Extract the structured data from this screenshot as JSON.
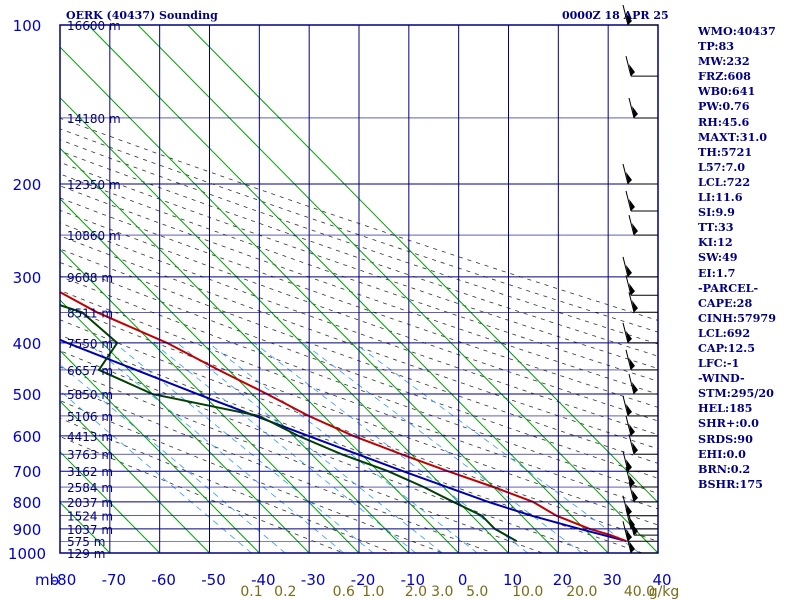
{
  "title_left": "OERK (40437) Sounding",
  "title_right": "0000Z 18 APR 25",
  "chart_data": {
    "type": "skew-t",
    "x_axis_label": "mb",
    "y_axis": "pressure (mb), log scale",
    "pressure_levels": [
      100,
      200,
      300,
      400,
      500,
      600,
      700,
      800,
      900,
      1000
    ],
    "temperature_ticks": [
      -80,
      -70,
      -60,
      -50,
      -40,
      -30,
      -20,
      -10,
      0,
      10,
      20,
      30,
      40
    ],
    "mixing_ratio_labels": [
      "0.1",
      "0.2",
      "0.6",
      "1.0",
      "2.0",
      "3.0",
      "5.0",
      "10.0",
      "20.0",
      "40.0"
    ],
    "mixing_ratio_unit": "g/kg",
    "height_labels": [
      {
        "p": 100,
        "label": "16600 m"
      },
      {
        "p": 150,
        "label": "14180 m"
      },
      {
        "p": 200,
        "label": "12350 m"
      },
      {
        "p": 250,
        "label": "10860 m"
      },
      {
        "p": 300,
        "label": "9608 m"
      },
      {
        "p": 350,
        "label": "8511 m"
      },
      {
        "p": 400,
        "label": "7550 m"
      },
      {
        "p": 450,
        "label": "6657 m"
      },
      {
        "p": 500,
        "label": "5850 m"
      },
      {
        "p": 550,
        "label": "5106 m"
      },
      {
        "p": 600,
        "label": "4413 m"
      },
      {
        "p": 650,
        "label": "3763 m"
      },
      {
        "p": 700,
        "label": "3162 m"
      },
      {
        "p": 750,
        "label": "2584 m"
      },
      {
        "p": 800,
        "label": "2037 m"
      },
      {
        "p": 850,
        "label": "1524 m"
      },
      {
        "p": 900,
        "label": "1037 m"
      },
      {
        "p": 950,
        "label": "575 m"
      },
      {
        "p": 1000,
        "label": "129 m"
      }
    ],
    "temperature_profile": [
      {
        "p": 950,
        "t": 36
      },
      {
        "p": 925,
        "t": 34
      },
      {
        "p": 900,
        "t": 31
      },
      {
        "p": 850,
        "t": 27
      },
      {
        "p": 800,
        "t": 25
      },
      {
        "p": 750,
        "t": 20
      },
      {
        "p": 700,
        "t": 14
      },
      {
        "p": 650,
        "t": 8
      },
      {
        "p": 600,
        "t": 2
      },
      {
        "p": 550,
        "t": -3
      },
      {
        "p": 500,
        "t": -7
      },
      {
        "p": 450,
        "t": -12
      },
      {
        "p": 400,
        "t": -17
      },
      {
        "p": 350,
        "t": -25
      },
      {
        "p": 300,
        "t": -31
      },
      {
        "p": 250,
        "t": -40
      },
      {
        "p": 200,
        "t": -50
      },
      {
        "p": 150,
        "t": -56
      },
      {
        "p": 100,
        "t": -65
      }
    ],
    "dewpoint_profile": [
      {
        "p": 950,
        "td": 14
      },
      {
        "p": 900,
        "td": 12
      },
      {
        "p": 850,
        "td": 12
      },
      {
        "p": 800,
        "td": 9
      },
      {
        "p": 750,
        "td": 6
      },
      {
        "p": 700,
        "td": 2
      },
      {
        "p": 650,
        "td": -4
      },
      {
        "p": 600,
        "td": -9
      },
      {
        "p": 550,
        "td": -13
      },
      {
        "p": 500,
        "td": -30
      },
      {
        "p": 450,
        "td": -36
      },
      {
        "p": 400,
        "td": -27
      },
      {
        "p": 350,
        "td": -28
      },
      {
        "p": 300,
        "td": -43
      },
      {
        "p": 250,
        "td": -59
      },
      {
        "p": 200,
        "td": -76
      }
    ],
    "parcel_profile": [
      {
        "p": 950,
        "t": 36
      },
      {
        "p": 900,
        "t": 29
      },
      {
        "p": 850,
        "t": 22
      },
      {
        "p": 800,
        "t": 16
      },
      {
        "p": 700,
        "t": 5
      },
      {
        "p": 600,
        "t": -7
      },
      {
        "p": 500,
        "t": -21
      },
      {
        "p": 400,
        "t": -37
      },
      {
        "p": 300,
        "t": -55
      },
      {
        "p": 250,
        "t": -65
      },
      {
        "p": 200,
        "t": -77
      },
      {
        "p": 170,
        "t": -85
      }
    ],
    "wind_barbs_p": [
      100,
      125,
      150,
      200,
      225,
      250,
      300,
      325,
      350,
      400,
      450,
      500,
      550,
      600,
      650,
      700,
      750,
      800,
      850,
      900,
      925,
      950,
      1000
    ]
  },
  "indices": [
    "WMO:40437",
    "TP:83",
    "MW:232",
    "FRZ:608",
    "WB0:641",
    "PW:0.76",
    "RH:45.6",
    "MAXT:31.0",
    "TH:5721",
    "L57:7.0",
    "LCL:722",
    "LI:11.6",
    "SI:9.9",
    "TT:33",
    "KI:12",
    "SW:49",
    "EI:1.7",
    "-PARCEL-",
    "CAPE:28",
    "CINH:57979",
    "LCL:692",
    "CAP:12.5",
    "LFC:-1",
    "-WIND-",
    "STM:295/20",
    "HEL:185",
    "SHR+:0.0",
    "SRDS:90",
    "EHI:0.0",
    "BRN:0.2",
    "BSHR:175"
  ],
  "colors": {
    "frame": "#000080",
    "temperature": "#c00000",
    "dewpoint": "#004000",
    "parcel": "#0000b0",
    "isotherm_skew": "#00a000",
    "mixing_ratio": "#3399ff",
    "adiabat": "#333333",
    "axis_labels": "#0000cc",
    "mixing_labels": "#7a6a1a",
    "height_labels": "#000080",
    "text": "#000080"
  }
}
